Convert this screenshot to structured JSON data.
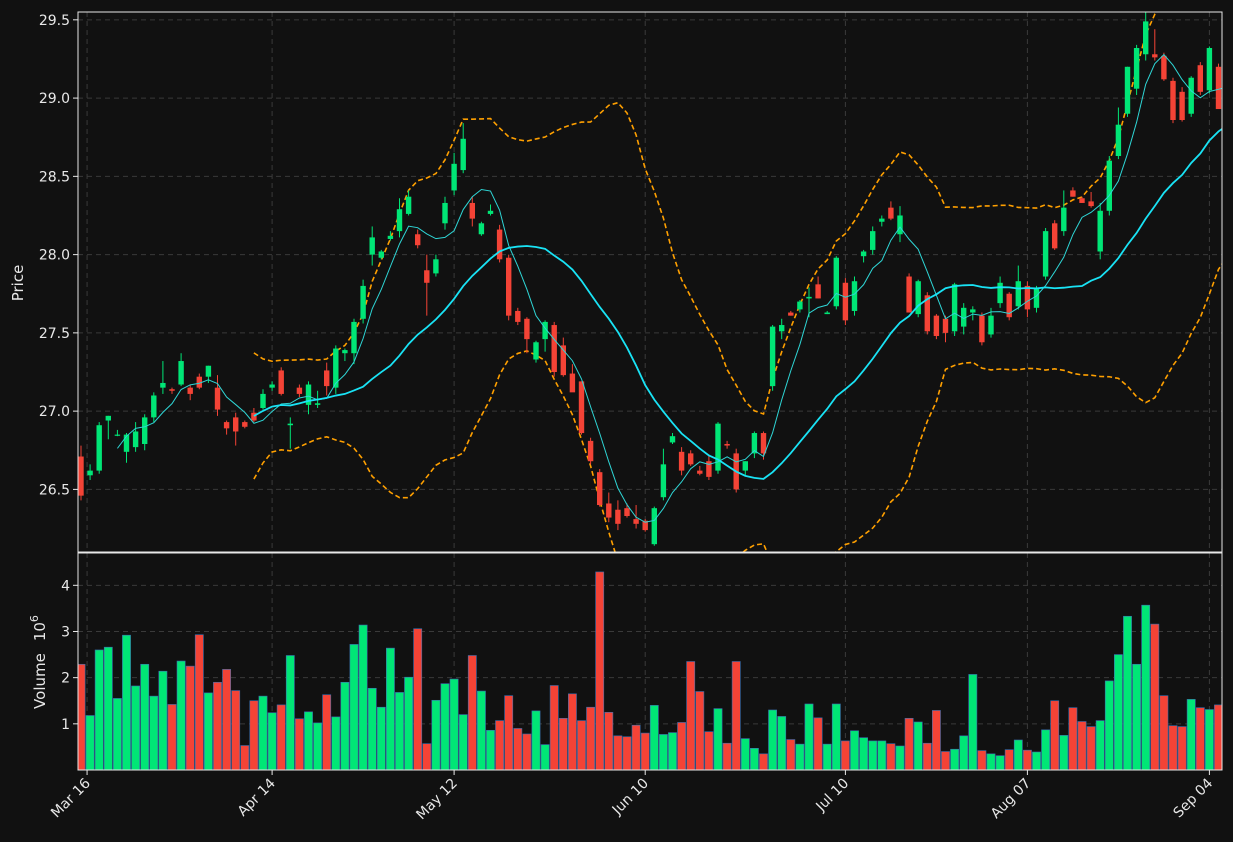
{
  "chart_data": {
    "type": "candlestick",
    "dates": [
      "2025-03-14",
      "2025-03-17",
      "2025-03-18",
      "2025-03-19",
      "2025-03-20",
      "2025-03-21",
      "2025-03-24",
      "2025-03-25",
      "2025-03-26",
      "2025-03-27",
      "2025-03-28",
      "2025-03-31",
      "2025-04-01",
      "2025-04-02",
      "2025-04-03",
      "2025-04-04",
      "2025-04-07",
      "2025-04-08",
      "2025-04-09",
      "2025-04-10",
      "2025-04-11",
      "2025-04-14",
      "2025-04-15",
      "2025-04-16",
      "2025-04-17",
      "2025-04-18",
      "2025-04-21",
      "2025-04-22",
      "2025-04-23",
      "2025-04-24",
      "2025-04-25",
      "2025-04-28",
      "2025-04-29",
      "2025-04-30",
      "2025-05-01",
      "2025-05-02",
      "2025-05-05",
      "2025-05-06",
      "2025-05-07",
      "2025-05-08",
      "2025-05-09",
      "2025-05-12",
      "2025-05-13",
      "2025-05-14",
      "2025-05-15",
      "2025-05-16",
      "2025-05-19",
      "2025-05-20",
      "2025-05-21",
      "2025-05-22",
      "2025-05-23",
      "2025-05-26",
      "2025-05-27",
      "2025-05-28",
      "2025-05-29",
      "2025-05-30",
      "2025-06-02",
      "2025-06-03",
      "2025-06-04",
      "2025-06-05",
      "2025-06-06",
      "2025-06-09",
      "2025-06-10",
      "2025-06-11",
      "2025-06-12",
      "2025-06-13",
      "2025-06-16",
      "2025-06-17",
      "2025-06-18",
      "2025-06-19",
      "2025-06-20",
      "2025-06-23",
      "2025-06-24",
      "2025-06-25",
      "2025-06-26",
      "2025-06-27",
      "2025-06-30",
      "2025-07-01",
      "2025-07-02",
      "2025-07-03",
      "2025-07-04",
      "2025-07-07",
      "2025-07-08",
      "2025-07-09",
      "2025-07-10",
      "2025-07-11",
      "2025-07-14",
      "2025-07-15",
      "2025-07-16",
      "2025-07-17",
      "2025-07-18",
      "2025-07-21",
      "2025-07-22",
      "2025-07-23",
      "2025-07-24",
      "2025-07-25",
      "2025-07-28",
      "2025-07-29",
      "2025-07-30",
      "2025-07-31",
      "2025-08-01",
      "2025-08-04",
      "2025-08-05",
      "2025-08-06",
      "2025-08-07",
      "2025-08-08",
      "2025-08-11",
      "2025-08-12",
      "2025-08-13",
      "2025-08-14",
      "2025-08-15",
      "2025-08-18",
      "2025-08-19",
      "2025-08-20",
      "2025-08-21",
      "2025-08-22",
      "2025-08-25",
      "2025-08-26",
      "2025-08-27",
      "2025-08-28",
      "2025-08-29",
      "2025-09-01",
      "2025-09-02",
      "2025-09-03",
      "2025-09-04",
      "2025-09-05",
      "2025-09-08",
      "2025-09-09"
    ],
    "candles": [
      {
        "o": 26.71,
        "h": 26.78,
        "l": 26.43,
        "c": 26.46
      },
      {
        "o": 26.59,
        "h": 26.66,
        "l": 26.56,
        "c": 26.62
      },
      {
        "o": 26.62,
        "h": 26.93,
        "l": 26.6,
        "c": 26.91
      },
      {
        "o": 26.94,
        "h": 26.97,
        "l": 26.82,
        "c": 26.97
      },
      {
        "o": 26.85,
        "h": 26.88,
        "l": 26.84,
        "c": 26.85
      },
      {
        "o": 26.74,
        "h": 26.86,
        "l": 26.67,
        "c": 26.85
      },
      {
        "o": 26.77,
        "h": 26.93,
        "l": 26.74,
        "c": 26.87
      },
      {
        "o": 26.79,
        "h": 26.98,
        "l": 26.75,
        "c": 26.96
      },
      {
        "o": 26.96,
        "h": 27.12,
        "l": 26.93,
        "c": 27.1
      },
      {
        "o": 27.15,
        "h": 27.32,
        "l": 27.11,
        "c": 27.18
      },
      {
        "o": 27.14,
        "h": 27.15,
        "l": 27.11,
        "c": 27.13
      },
      {
        "o": 27.17,
        "h": 27.37,
        "l": 27.16,
        "c": 27.32
      },
      {
        "o": 27.15,
        "h": 27.17,
        "l": 27.07,
        "c": 27.11
      },
      {
        "o": 27.22,
        "h": 27.24,
        "l": 27.14,
        "c": 27.15
      },
      {
        "o": 27.22,
        "h": 27.29,
        "l": 27.18,
        "c": 27.29
      },
      {
        "o": 27.15,
        "h": 27.23,
        "l": 26.97,
        "c": 27.01
      },
      {
        "o": 26.93,
        "h": 26.94,
        "l": 26.85,
        "c": 26.89
      },
      {
        "o": 26.96,
        "h": 26.99,
        "l": 26.78,
        "c": 26.87
      },
      {
        "o": 26.93,
        "h": 26.94,
        "l": 26.89,
        "c": 26.9
      },
      {
        "o": 26.99,
        "h": 27.02,
        "l": 26.93,
        "c": 26.94
      },
      {
        "o": 27.02,
        "h": 27.14,
        "l": 27.01,
        "c": 27.11
      },
      {
        "o": 27.15,
        "h": 27.19,
        "l": 27.13,
        "c": 27.17
      },
      {
        "o": 27.26,
        "h": 27.28,
        "l": 27.1,
        "c": 27.11
      },
      {
        "o": 26.91,
        "h": 26.96,
        "l": 26.76,
        "c": 26.92
      },
      {
        "o": 27.15,
        "h": 27.17,
        "l": 27.09,
        "c": 27.11
      },
      {
        "o": 27.04,
        "h": 27.19,
        "l": 26.98,
        "c": 27.17
      },
      {
        "o": 27.04,
        "h": 27.13,
        "l": 27.02,
        "c": 27.05
      },
      {
        "o": 27.26,
        "h": 27.31,
        "l": 27.1,
        "c": 27.16
      },
      {
        "o": 27.15,
        "h": 27.42,
        "l": 27.11,
        "c": 27.4
      },
      {
        "o": 27.37,
        "h": 27.4,
        "l": 27.32,
        "c": 27.39
      },
      {
        "o": 27.37,
        "h": 27.59,
        "l": 27.3,
        "c": 27.57
      },
      {
        "o": 27.59,
        "h": 27.84,
        "l": 27.56,
        "c": 27.8
      },
      {
        "o": 28.0,
        "h": 28.18,
        "l": 27.93,
        "c": 28.11
      },
      {
        "o": 27.98,
        "h": 28.03,
        "l": 27.97,
        "c": 28.02
      },
      {
        "o": 28.1,
        "h": 28.15,
        "l": 28.09,
        "c": 28.12
      },
      {
        "o": 28.15,
        "h": 28.36,
        "l": 28.11,
        "c": 28.29
      },
      {
        "o": 28.26,
        "h": 28.41,
        "l": 28.25,
        "c": 28.37
      },
      {
        "o": 28.13,
        "h": 28.16,
        "l": 28.04,
        "c": 28.06
      },
      {
        "o": 27.9,
        "h": 28.0,
        "l": 27.61,
        "c": 27.82
      },
      {
        "o": 27.88,
        "h": 28.0,
        "l": 27.86,
        "c": 27.97
      },
      {
        "o": 28.2,
        "h": 28.37,
        "l": 28.16,
        "c": 28.33
      },
      {
        "o": 28.41,
        "h": 28.65,
        "l": 28.38,
        "c": 28.58
      },
      {
        "o": 28.54,
        "h": 28.84,
        "l": 28.52,
        "c": 28.74
      },
      {
        "o": 28.33,
        "h": 28.37,
        "l": 28.18,
        "c": 28.23
      },
      {
        "o": 28.13,
        "h": 28.21,
        "l": 28.12,
        "c": 28.2
      },
      {
        "o": 28.26,
        "h": 28.32,
        "l": 28.25,
        "c": 28.28
      },
      {
        "o": 28.16,
        "h": 28.19,
        "l": 27.95,
        "c": 27.97
      },
      {
        "o": 27.98,
        "h": 28.0,
        "l": 27.58,
        "c": 27.61
      },
      {
        "o": 27.64,
        "h": 27.66,
        "l": 27.55,
        "c": 27.57
      },
      {
        "o": 27.59,
        "h": 27.6,
        "l": 27.37,
        "c": 27.46
      },
      {
        "o": 27.33,
        "h": 27.45,
        "l": 27.31,
        "c": 27.44
      },
      {
        "o": 27.46,
        "h": 27.58,
        "l": 27.38,
        "c": 27.57
      },
      {
        "o": 27.55,
        "h": 27.57,
        "l": 27.22,
        "c": 27.25
      },
      {
        "o": 27.42,
        "h": 27.47,
        "l": 27.22,
        "c": 27.23
      },
      {
        "o": 27.24,
        "h": 27.3,
        "l": 27.13,
        "c": 27.12
      },
      {
        "o": 27.19,
        "h": 27.19,
        "l": 26.85,
        "c": 26.86
      },
      {
        "o": 26.81,
        "h": 26.83,
        "l": 26.66,
        "c": 26.68
      },
      {
        "o": 26.61,
        "h": 26.63,
        "l": 26.39,
        "c": 26.4
      },
      {
        "o": 26.41,
        "h": 26.48,
        "l": 26.29,
        "c": 26.32
      },
      {
        "o": 26.37,
        "h": 26.43,
        "l": 26.24,
        "c": 26.28
      },
      {
        "o": 26.38,
        "h": 26.41,
        "l": 26.32,
        "c": 26.33
      },
      {
        "o": 26.31,
        "h": 26.4,
        "l": 26.25,
        "c": 26.28
      },
      {
        "o": 26.3,
        "h": 26.31,
        "l": 26.23,
        "c": 26.24
      },
      {
        "o": 26.15,
        "h": 26.39,
        "l": 26.14,
        "c": 26.38
      },
      {
        "o": 26.45,
        "h": 26.76,
        "l": 26.43,
        "c": 26.66
      },
      {
        "o": 26.8,
        "h": 26.86,
        "l": 26.79,
        "c": 26.84
      },
      {
        "o": 26.74,
        "h": 26.77,
        "l": 26.59,
        "c": 26.62
      },
      {
        "o": 26.73,
        "h": 26.75,
        "l": 26.65,
        "c": 26.66
      },
      {
        "o": 26.62,
        "h": 26.65,
        "l": 26.59,
        "c": 26.6
      },
      {
        "o": 26.68,
        "h": 26.72,
        "l": 26.56,
        "c": 26.58
      },
      {
        "o": 26.62,
        "h": 26.93,
        "l": 26.6,
        "c": 26.92
      },
      {
        "o": 26.79,
        "h": 26.81,
        "l": 26.76,
        "c": 26.78
      },
      {
        "o": 26.73,
        "h": 26.76,
        "l": 26.48,
        "c": 26.5
      },
      {
        "o": 26.62,
        "h": 26.68,
        "l": 26.59,
        "c": 26.68
      },
      {
        "o": 26.73,
        "h": 26.87,
        "l": 26.7,
        "c": 26.86
      },
      {
        "o": 26.86,
        "h": 26.87,
        "l": 26.69,
        "c": 26.73
      },
      {
        "o": 27.16,
        "h": 27.55,
        "l": 27.13,
        "c": 27.54
      },
      {
        "o": 27.51,
        "h": 27.59,
        "l": 27.46,
        "c": 27.55
      },
      {
        "o": 27.63,
        "h": 27.64,
        "l": 27.61,
        "c": 27.61
      },
      {
        "o": 27.65,
        "h": 27.71,
        "l": 27.63,
        "c": 27.7
      },
      {
        "o": 27.72,
        "h": 27.79,
        "l": 27.6,
        "c": 27.73
      },
      {
        "o": 27.81,
        "h": 27.86,
        "l": 27.72,
        "c": 27.72
      },
      {
        "o": 27.62,
        "h": 27.64,
        "l": 27.62,
        "c": 27.63
      },
      {
        "o": 27.67,
        "h": 27.99,
        "l": 27.65,
        "c": 27.98
      },
      {
        "o": 27.82,
        "h": 27.85,
        "l": 27.55,
        "c": 27.58
      },
      {
        "o": 27.64,
        "h": 27.86,
        "l": 27.61,
        "c": 27.83
      },
      {
        "o": 27.99,
        "h": 28.03,
        "l": 27.95,
        "c": 28.02
      },
      {
        "o": 28.03,
        "h": 28.18,
        "l": 28.0,
        "c": 28.15
      },
      {
        "o": 28.21,
        "h": 28.25,
        "l": 28.18,
        "c": 28.23
      },
      {
        "o": 28.3,
        "h": 28.34,
        "l": 28.22,
        "c": 28.23
      },
      {
        "o": 28.13,
        "h": 28.31,
        "l": 28.08,
        "c": 28.25
      },
      {
        "o": 27.86,
        "h": 27.88,
        "l": 27.63,
        "c": 27.63
      },
      {
        "o": 27.62,
        "h": 27.84,
        "l": 27.6,
        "c": 27.83
      },
      {
        "o": 27.74,
        "h": 27.76,
        "l": 27.49,
        "c": 27.51
      },
      {
        "o": 27.61,
        "h": 27.62,
        "l": 27.46,
        "c": 27.48
      },
      {
        "o": 27.59,
        "h": 27.61,
        "l": 27.44,
        "c": 27.5
      },
      {
        "o": 27.51,
        "h": 27.82,
        "l": 27.48,
        "c": 27.81
      },
      {
        "o": 27.54,
        "h": 27.69,
        "l": 27.49,
        "c": 27.66
      },
      {
        "o": 27.63,
        "h": 27.67,
        "l": 27.58,
        "c": 27.65
      },
      {
        "o": 27.61,
        "h": 27.63,
        "l": 27.42,
        "c": 27.44
      },
      {
        "o": 27.49,
        "h": 27.66,
        "l": 27.47,
        "c": 27.61
      },
      {
        "o": 27.69,
        "h": 27.86,
        "l": 27.66,
        "c": 27.82
      },
      {
        "o": 27.75,
        "h": 27.76,
        "l": 27.58,
        "c": 27.6
      },
      {
        "o": 27.67,
        "h": 27.93,
        "l": 27.65,
        "c": 27.83
      },
      {
        "o": 27.8,
        "h": 27.83,
        "l": 27.6,
        "c": 27.65
      },
      {
        "o": 27.66,
        "h": 27.8,
        "l": 27.63,
        "c": 27.78
      },
      {
        "o": 27.86,
        "h": 28.17,
        "l": 27.84,
        "c": 28.15
      },
      {
        "o": 28.2,
        "h": 28.22,
        "l": 28.03,
        "c": 28.04
      },
      {
        "o": 28.15,
        "h": 28.41,
        "l": 28.12,
        "c": 28.3
      },
      {
        "o": 28.41,
        "h": 28.43,
        "l": 28.37,
        "c": 28.37
      },
      {
        "o": 28.36,
        "h": 28.37,
        "l": 28.33,
        "c": 28.33
      },
      {
        "o": 28.34,
        "h": 28.4,
        "l": 28.3,
        "c": 28.31
      },
      {
        "o": 28.02,
        "h": 28.33,
        "l": 27.97,
        "c": 28.28
      },
      {
        "o": 28.28,
        "h": 28.63,
        "l": 28.25,
        "c": 28.6
      },
      {
        "o": 28.63,
        "h": 28.94,
        "l": 28.61,
        "c": 28.83
      },
      {
        "o": 28.9,
        "h": 29.2,
        "l": 28.88,
        "c": 29.2
      },
      {
        "o": 29.06,
        "h": 29.34,
        "l": 29.02,
        "c": 29.32
      },
      {
        "o": 29.28,
        "h": 29.55,
        "l": 29.24,
        "c": 29.49
      },
      {
        "o": 29.28,
        "h": 29.44,
        "l": 29.24,
        "c": 29.26
      },
      {
        "o": 29.27,
        "h": 29.29,
        "l": 29.11,
        "c": 29.12
      },
      {
        "o": 29.11,
        "h": 29.13,
        "l": 28.84,
        "c": 28.86
      },
      {
        "o": 29.04,
        "h": 29.07,
        "l": 28.85,
        "c": 28.86
      },
      {
        "o": 28.9,
        "h": 29.14,
        "l": 28.88,
        "c": 29.13
      },
      {
        "o": 29.21,
        "h": 29.23,
        "l": 29.02,
        "c": 29.04
      },
      {
        "o": 29.05,
        "h": 29.33,
        "l": 29.03,
        "c": 29.32
      },
      {
        "o": 29.2,
        "h": 29.22,
        "l": 28.94,
        "c": 28.93
      },
      {
        "o": 28.97,
        "h": 29.07,
        "l": 28.85,
        "c": 28.95
      }
    ],
    "volume_millions": [
      2.29,
      1.18,
      2.6,
      2.66,
      1.55,
      2.92,
      1.82,
      2.29,
      1.6,
      2.14,
      1.42,
      2.36,
      2.25,
      2.93,
      1.67,
      1.9,
      2.18,
      1.72,
      0.53,
      1.5,
      1.6,
      1.24,
      1.41,
      2.48,
      1.11,
      1.26,
      1.02,
      1.63,
      1.15,
      1.9,
      2.72,
      3.14,
      1.77,
      1.36,
      2.64,
      1.68,
      2.01,
      3.06,
      0.57,
      1.51,
      1.87,
      1.97,
      1.2,
      2.48,
      1.71,
      0.86,
      1.07,
      1.61,
      0.9,
      0.78,
      1.28,
      0.55,
      1.83,
      1.12,
      1.65,
      1.07,
      1.36,
      4.29,
      1.25,
      0.74,
      0.72,
      0.97,
      0.8,
      1.4,
      0.77,
      0.81,
      1.03,
      2.35,
      1.7,
      0.83,
      1.33,
      0.58,
      2.35,
      0.68,
      0.47,
      0.35,
      1.3,
      1.16,
      0.66,
      0.56,
      1.43,
      1.13,
      0.56,
      1.43,
      0.63,
      0.85,
      0.7,
      0.63,
      0.63,
      0.57,
      0.52,
      1.12,
      1.04,
      0.58,
      1.29,
      0.4,
      0.45,
      0.74,
      2.07,
      0.42,
      0.35,
      0.31,
      0.44,
      0.65,
      0.43,
      0.39,
      0.87,
      1.5,
      0.75,
      1.35,
      1.05,
      0.94,
      1.07,
      1.93,
      2.5,
      3.33,
      2.29,
      3.57,
      3.16,
      1.61,
      0.96,
      0.94,
      1.53,
      1.35,
      1.31,
      1.41
    ],
    "ma_fast_window": 5,
    "ma_slow_window": 20,
    "bollinger_window": 20,
    "bollinger_k": 2,
    "price_ylim": [
      26.1,
      29.55
    ],
    "price_yticks": [
      "26.5",
      "27.0",
      "27.5",
      "28.0",
      "28.5",
      "29.0",
      "29.5"
    ],
    "volume_ylim": [
      0,
      4.7
    ],
    "volume_yticks": [
      "1",
      "2",
      "3",
      "4"
    ],
    "x_ticks": [
      {
        "date": "2025-03-16",
        "label": "Mar 16"
      },
      {
        "date": "2025-04-14",
        "label": "Apr 14"
      },
      {
        "date": "2025-05-12",
        "label": "May 12"
      },
      {
        "date": "2025-06-10",
        "label": "Jun 10"
      },
      {
        "date": "2025-07-10",
        "label": "Jul 10"
      },
      {
        "date": "2025-08-07",
        "label": "Aug 07"
      },
      {
        "date": "2025-09-04",
        "label": "Sep 04"
      }
    ],
    "price_ylabel": "Price",
    "volume_ylabel": "Volume",
    "volume_unit": "10",
    "volume_unit_exp": "6",
    "grid": true,
    "colors": {
      "background": "#111111",
      "up": "#00e676",
      "down": "#f44336",
      "ma_fast": "#2fd6d6",
      "ma_slow": "#19e3f5",
      "bollinger": "#ffa000",
      "grid": "#3a3a3a",
      "text": "#e8e8e8",
      "axis": "#e8e8e8",
      "volume_edge": "#3b6fb0"
    }
  }
}
